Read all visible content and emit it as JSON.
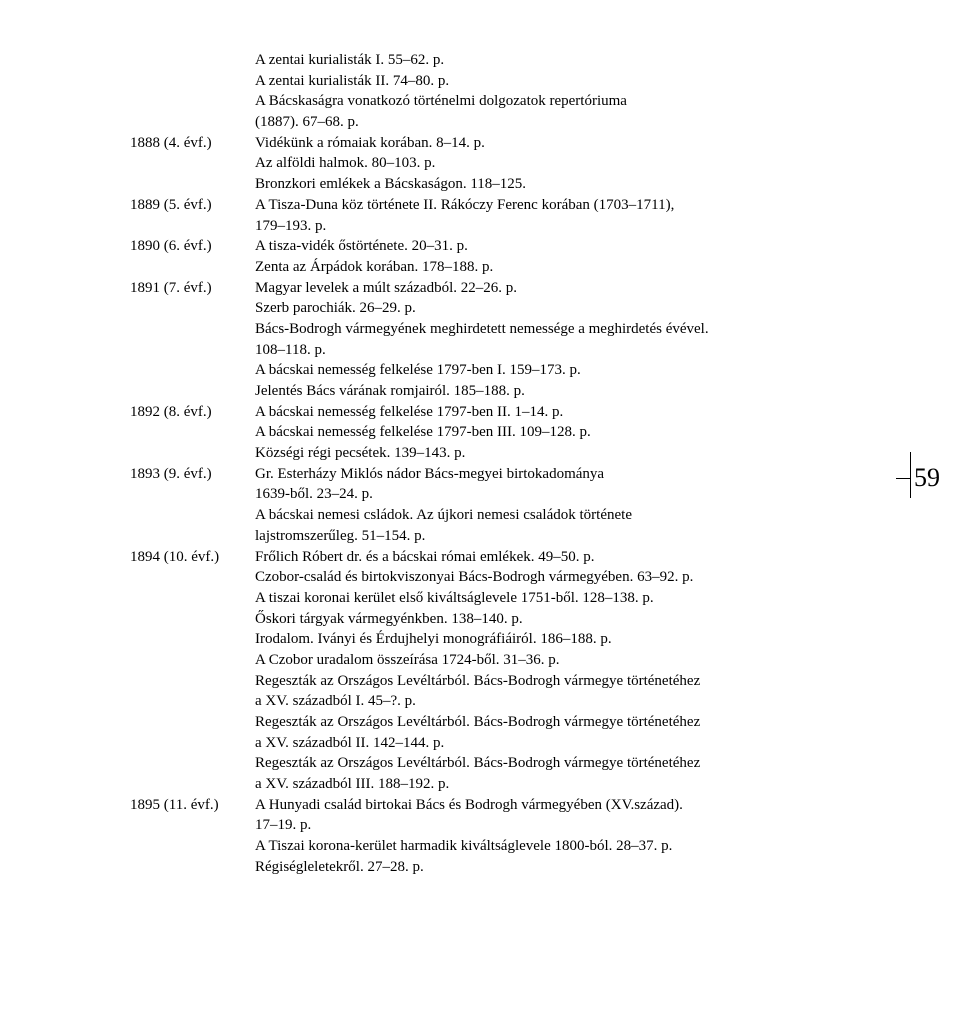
{
  "pageNumber": "59",
  "entries": [
    {
      "label": "",
      "lines": [
        "A zentai kurialisták I. 55–62. p."
      ]
    },
    {
      "label": "",
      "lines": [
        "A zentai kurialisták II. 74–80. p."
      ]
    },
    {
      "label": "",
      "lines": [
        "A Bácskaságra vonatkozó történelmi dolgozatok repertóriuma"
      ]
    },
    {
      "label": "",
      "lines": [
        "(1887). 67–68. p."
      ]
    },
    {
      "label": "1888 (4. évf.)",
      "lines": [
        "Vidékünk a rómaiak korában. 8–14. p."
      ]
    },
    {
      "label": "",
      "lines": [
        "Az alföldi halmok. 80–103. p."
      ]
    },
    {
      "label": "",
      "lines": [
        "Bronzkori emlékek a Bácskaságon. 118–125."
      ]
    },
    {
      "label": "1889 (5. évf.)",
      "lines": [
        "A Tisza-Duna köz története II. Rákóczy Ferenc korában (1703–1711),"
      ]
    },
    {
      "label": "",
      "lines": [
        "179–193. p."
      ]
    },
    {
      "label": "1890 (6. évf.)",
      "lines": [
        "A tisza-vidék őstörténete. 20–31. p."
      ]
    },
    {
      "label": "",
      "lines": [
        "Zenta az Árpádok korában. 178–188. p."
      ]
    },
    {
      "label": "1891 (7. évf.)",
      "lines": [
        "Magyar levelek a múlt századból. 22–26. p."
      ]
    },
    {
      "label": "",
      "lines": [
        "Szerb parochiák. 26–29. p."
      ]
    },
    {
      "label": "",
      "lines": [
        "Bács-Bodrogh vármegyének meghirdetett nemessége a meghirdetés évével."
      ]
    },
    {
      "label": "",
      "lines": [
        "108–118. p."
      ]
    },
    {
      "label": "",
      "lines": [
        "A bácskai nemesség felkelése 1797-ben I. 159–173. p."
      ]
    },
    {
      "label": "",
      "lines": [
        "Jelentés Bács várának romjairól. 185–188. p."
      ]
    },
    {
      "label": "1892 (8. évf.)",
      "lines": [
        "A bácskai nemesség felkelése 1797-ben II. 1–14. p."
      ]
    },
    {
      "label": "",
      "lines": [
        "A bácskai nemesség felkelése 1797-ben III. 109–128. p."
      ]
    },
    {
      "label": "",
      "lines": [
        "Községi régi pecsétek. 139–143. p."
      ]
    },
    {
      "label": "1893 (9. évf.)",
      "lines": [
        "Gr. Esterházy Miklós nádor Bács-megyei birtokadománya"
      ]
    },
    {
      "label": "",
      "lines": [
        "1639-ből. 23–24. p."
      ]
    },
    {
      "label": "",
      "lines": [
        "A bácskai nemesi csládok. Az újkori nemesi családok története"
      ]
    },
    {
      "label": "",
      "lines": [
        "lajstromszerűleg. 51–154. p."
      ]
    },
    {
      "label": "1894 (10. évf.)",
      "lines": [
        "Frőlich Róbert dr. és a bácskai római emlékek. 49–50. p."
      ]
    },
    {
      "label": "",
      "lines": [
        "Czobor-család és birtokviszonyai Bács-Bodrogh vármegyében. 63–92. p."
      ]
    },
    {
      "label": "",
      "lines": [
        "A tiszai koronai kerület első kiváltságlevele 1751-ből. 128–138. p."
      ]
    },
    {
      "label": "",
      "lines": [
        "Őskori tárgyak vármegyénkben. 138–140. p."
      ]
    },
    {
      "label": "",
      "lines": [
        "Irodalom. Iványi és Érdujhelyi monográfiáiról. 186–188. p."
      ]
    },
    {
      "label": "",
      "lines": [
        "A Czobor uradalom összeírása 1724-ből. 31–36. p."
      ]
    },
    {
      "label": "",
      "lines": [
        "Regeszták az Országos Levéltárból. Bács-Bodrogh vármegye történetéhez"
      ]
    },
    {
      "label": "",
      "lines": [
        "a XV. századból I. 45–?. p."
      ]
    },
    {
      "label": "",
      "lines": [
        "Regeszták az Országos Levéltárból. Bács-Bodrogh vármegye történetéhez"
      ]
    },
    {
      "label": "",
      "lines": [
        "a XV. századból II. 142–144. p."
      ]
    },
    {
      "label": "",
      "lines": [
        "Regeszták az Országos Levéltárból. Bács-Bodrogh vármegye történetéhez"
      ]
    },
    {
      "label": "",
      "lines": [
        "a XV. századból III. 188–192. p."
      ]
    },
    {
      "label": "1895 (11. évf.)",
      "lines": [
        "A Hunyadi család birtokai Bács és Bodrogh vármegyében (XV.század)."
      ]
    },
    {
      "label": "",
      "lines": [
        "17–19. p."
      ]
    },
    {
      "label": "",
      "lines": [
        "A Tiszai korona-kerület harmadik kiváltságlevele 1800-ból. 28–37. p."
      ]
    },
    {
      "label": "",
      "lines": [
        "Régiségleletekről. 27–28. p."
      ]
    }
  ]
}
